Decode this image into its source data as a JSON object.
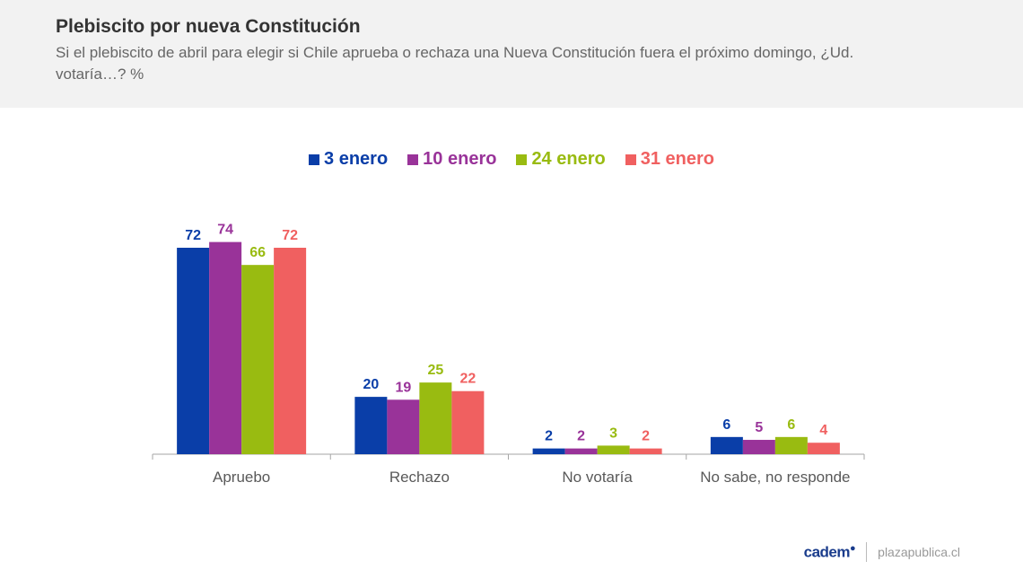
{
  "header": {
    "title": "Plebiscito por nueva Constitución",
    "subtitle": "Si el plebiscito de abril para elegir si Chile aprueba o rechaza una Nueva Constitución fuera el próximo domingo, ¿Ud. votaría…? %"
  },
  "footer": {
    "logo_text": "cadem",
    "site": "plazapublica.cl"
  },
  "chart_data": {
    "type": "bar",
    "categories": [
      "Apruebo",
      "Rechazo",
      "No votaría",
      "No sabe, no responde"
    ],
    "series": [
      {
        "name": "3 enero",
        "color": "#0a3ea8",
        "values": [
          72,
          20,
          2,
          6
        ]
      },
      {
        "name": "10 enero",
        "color": "#993399",
        "values": [
          74,
          19,
          2,
          5
        ]
      },
      {
        "name": "24 enero",
        "color": "#99bb11",
        "values": [
          66,
          25,
          3,
          6
        ]
      },
      {
        "name": "31 enero",
        "color": "#f06060",
        "values": [
          72,
          22,
          2,
          4
        ]
      }
    ],
    "ylim": [
      0,
      80
    ],
    "grid": false,
    "legend_position": "top-center",
    "data_labels": true
  }
}
